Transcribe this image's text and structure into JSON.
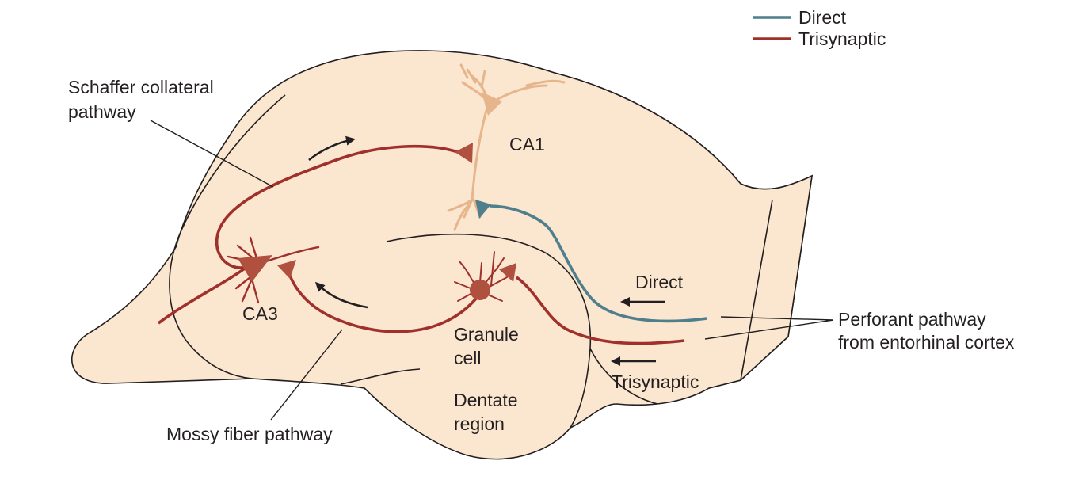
{
  "colors": {
    "tissue": "#fbe6cf",
    "tissue_side": "#e8c8ab",
    "direct": "#4f7f8c",
    "trisynaptic": "#a0302b",
    "cell_body": "#b0503f",
    "ca1_neuron": "#e6b58c",
    "ink": "#231f20"
  },
  "legend": {
    "direct_label": "Direct",
    "trisynaptic_label": "Trisynaptic"
  },
  "labels": {
    "schaffer_line1": "Schaffer collateral",
    "schaffer_line2": "pathway",
    "ca1": "CA1",
    "ca3": "CA3",
    "granule_line1": "Granule",
    "granule_line2": "cell",
    "dentate_line1": "Dentate",
    "dentate_line2": "region",
    "mossy": "Mossy fiber pathway",
    "direct_arrow": "Direct",
    "trisynaptic_arrow": "Trisynaptic",
    "perforant_line1": "Perforant pathway",
    "perforant_line2": "from entorhinal cortex"
  }
}
